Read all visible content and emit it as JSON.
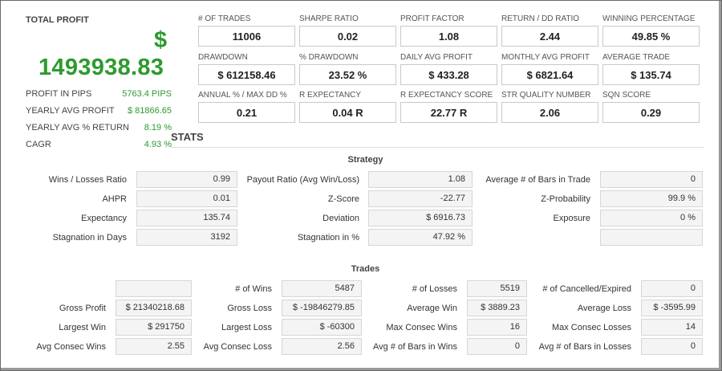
{
  "total_profit": {
    "title": "TOTAL PROFIT",
    "currency": "$",
    "value": "1493938.83",
    "stats": [
      {
        "label": "PROFIT IN PIPS",
        "value": "5763.4 PIPS"
      },
      {
        "label": "YEARLY AVG PROFIT",
        "value": "$ 81866.65"
      },
      {
        "label": "YEARLY AVG % RETURN",
        "value": "8.19 %"
      },
      {
        "label": "CAGR",
        "value": "4.93 %"
      }
    ]
  },
  "metrics": [
    {
      "label": "# OF TRADES",
      "value": "11006"
    },
    {
      "label": "SHARPE RATIO",
      "value": "0.02"
    },
    {
      "label": "PROFIT FACTOR",
      "value": "1.08"
    },
    {
      "label": "RETURN / DD RATIO",
      "value": "2.44"
    },
    {
      "label": "WINNING PERCENTAGE",
      "value": "49.85 %"
    },
    {
      "label": "DRAWDOWN",
      "value": "$ 612158.46"
    },
    {
      "label": "% DRAWDOWN",
      "value": "23.52 %"
    },
    {
      "label": "DAILY AVG PROFIT",
      "value": "$ 433.28"
    },
    {
      "label": "MONTHLY AVG PROFIT",
      "value": "$ 6821.64"
    },
    {
      "label": "AVERAGE TRADE",
      "value": "$ 135.74"
    },
    {
      "label": "ANNUAL % / MAX DD %",
      "value": "0.21"
    },
    {
      "label": "R EXPECTANCY",
      "value": "0.04 R"
    },
    {
      "label": "R EXPECTANCY SCORE",
      "value": "22.77 R"
    },
    {
      "label": "STR QUALITY NUMBER",
      "value": "2.06"
    },
    {
      "label": "SQN SCORE",
      "value": "0.29"
    }
  ],
  "stats_heading": "STATS",
  "strategy": {
    "heading": "Strategy",
    "rows": [
      [
        {
          "label": "Wins / Losses Ratio",
          "value": "0.99"
        },
        {
          "label": "Payout Ratio (Avg Win/Loss)",
          "value": "1.08"
        },
        {
          "label": "Average # of Bars in Trade",
          "value": "0"
        }
      ],
      [
        {
          "label": "AHPR",
          "value": "0.01"
        },
        {
          "label": "Z-Score",
          "value": "-22.77"
        },
        {
          "label": "Z-Probability",
          "value": "99.9 %"
        }
      ],
      [
        {
          "label": "Expectancy",
          "value": "135.74"
        },
        {
          "label": "Deviation",
          "value": "$ 6916.73"
        },
        {
          "label": "Exposure",
          "value": "0 %"
        }
      ],
      [
        {
          "label": "Stagnation in Days",
          "value": "3192"
        },
        {
          "label": "Stagnation in %",
          "value": "47.92 %"
        },
        {
          "label": "",
          "value": ""
        }
      ]
    ]
  },
  "trades": {
    "heading": "Trades",
    "rows": [
      [
        {
          "label": "",
          "value": ""
        },
        {
          "label": "# of Wins",
          "value": "5487"
        },
        {
          "label": "# of Losses",
          "value": "5519"
        },
        {
          "label": "# of Cancelled/Expired",
          "value": "0"
        }
      ],
      [
        {
          "label": "Gross Profit",
          "value": "$ 21340218.68"
        },
        {
          "label": "Gross Loss",
          "value": "$ -19846279.85"
        },
        {
          "label": "Average Win",
          "value": "$ 3889.23"
        },
        {
          "label": "Average Loss",
          "value": "$ -3595.99"
        }
      ],
      [
        {
          "label": "Largest Win",
          "value": "$ 291750"
        },
        {
          "label": "Largest Loss",
          "value": "$ -60300"
        },
        {
          "label": "Max Consec Wins",
          "value": "16"
        },
        {
          "label": "Max Consec Losses",
          "value": "14"
        }
      ],
      [
        {
          "label": "Avg Consec Wins",
          "value": "2.55"
        },
        {
          "label": "Avg Consec Loss",
          "value": "2.56"
        },
        {
          "label": "Avg # of Bars in Wins",
          "value": "0"
        },
        {
          "label": "Avg # of Bars in Losses",
          "value": "0"
        }
      ]
    ]
  },
  "colors": {
    "profit_green": "#2e9a2e",
    "cell_bg": "#f4f4f4",
    "cell_border": "#d6d6d6"
  }
}
